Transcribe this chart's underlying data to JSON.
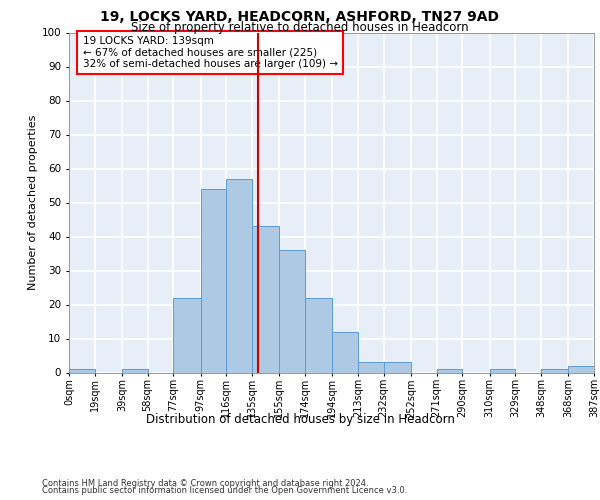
{
  "title1": "19, LOCKS YARD, HEADCORN, ASHFORD, TN27 9AD",
  "title2": "Size of property relative to detached houses in Headcorn",
  "xlabel": "Distribution of detached houses by size in Headcorn",
  "ylabel": "Number of detached properties",
  "footer1": "Contains HM Land Registry data © Crown copyright and database right 2024.",
  "footer2": "Contains public sector information licensed under the Open Government Licence v3.0.",
  "annotation_line1": "19 LOCKS YARD: 139sqm",
  "annotation_line2": "← 67% of detached houses are smaller (225)",
  "annotation_line3": "32% of semi-detached houses are larger (109) →",
  "property_size": 139,
  "bin_edges": [
    0,
    19,
    39,
    58,
    77,
    97,
    116,
    135,
    155,
    174,
    194,
    213,
    232,
    252,
    271,
    290,
    310,
    329,
    348,
    368,
    387
  ],
  "bar_heights": [
    1,
    0,
    1,
    0,
    22,
    54,
    57,
    43,
    36,
    22,
    12,
    3,
    3,
    0,
    1,
    0,
    1,
    0,
    1,
    2
  ],
  "bar_color": "#aec9e3",
  "bar_edge_color": "#5b9bd5",
  "vline_color": "#cc0000",
  "vline_x": 139,
  "bg_color": "#e8eef7",
  "grid_color": "#ffffff",
  "ylim": [
    0,
    100
  ],
  "xlim": [
    0,
    387
  ],
  "tick_labels": [
    "0sqm",
    "19sqm",
    "39sqm",
    "58sqm",
    "77sqm",
    "97sqm",
    "116sqm",
    "135sqm",
    "155sqm",
    "174sqm",
    "194sqm",
    "213sqm",
    "232sqm",
    "252sqm",
    "271sqm",
    "290sqm",
    "310sqm",
    "329sqm",
    "348sqm",
    "368sqm",
    "387sqm"
  ]
}
